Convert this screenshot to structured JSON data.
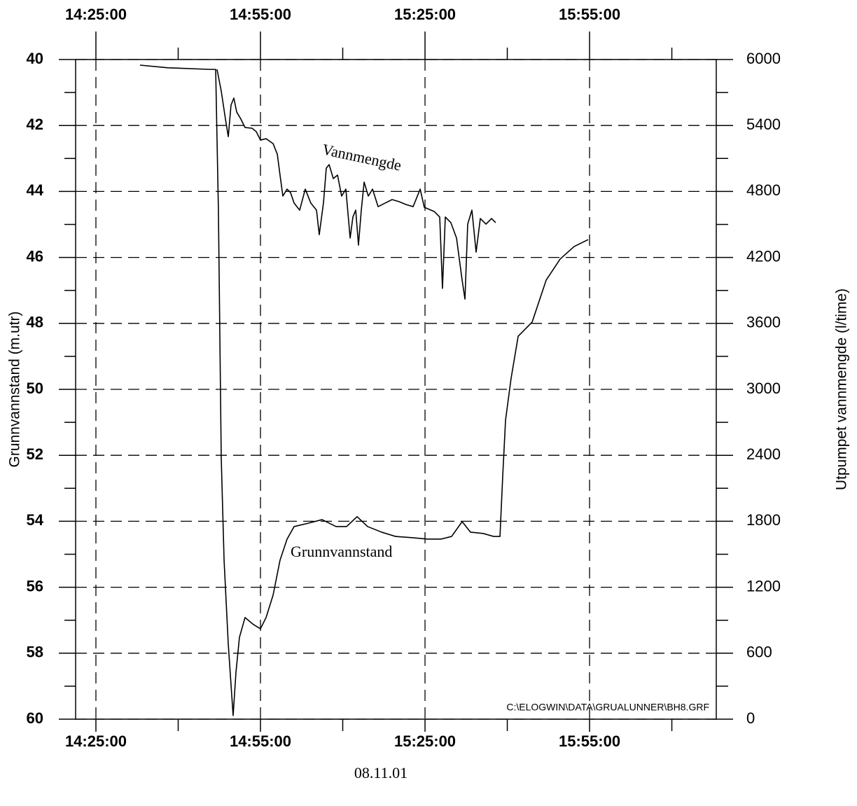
{
  "chart_data": {
    "type": "line",
    "xlim": [
      "14:21:18",
      "16:18:06"
    ],
    "xticks": [
      "14:25:00",
      "14:55:00",
      "15:25:00",
      "15:55:00"
    ],
    "xminorticks": [
      "14:40:00",
      "15:10:00",
      "15:40:00",
      "16:10:00"
    ],
    "ylim": [
      60,
      40
    ],
    "yticks": [
      40,
      42,
      44,
      46,
      48,
      50,
      52,
      54,
      56,
      58,
      60
    ],
    "yminorticks": [
      41,
      43,
      45,
      47,
      49,
      51,
      53,
      55,
      57,
      59
    ],
    "y2lim": [
      0,
      6000
    ],
    "y2ticks": [
      0,
      600,
      1200,
      1800,
      2400,
      3000,
      3600,
      4200,
      4800,
      5400,
      6000
    ],
    "y2minorticks": [
      300,
      900,
      1500,
      2100,
      2700,
      3300,
      3900,
      4500,
      5100,
      5700
    ],
    "ylabel": "Grunnvannstand (m.utr)",
    "y2label": "Utpumpet vannmengde (l/time)",
    "xlabel": "08.11.01",
    "grid": true,
    "annotations": [
      "Vannmengde",
      "Grunnvannstand",
      "C:\\ELOGWIN\\DATA\\GRUALUNNER\\BH8.GRF"
    ],
    "series": [
      {
        "name": "Grunnvannstand",
        "color": "#000000",
        "axis": "y",
        "x": [
          "14:33:02",
          "14:38:09",
          "14:45:49",
          "14:46:50",
          "14:47:20",
          "14:47:51",
          "14:48:22",
          "14:49:08",
          "14:50:01",
          "14:50:32",
          "14:51:10",
          "14:52:11",
          "14:53:43",
          "14:55:00",
          "14:56:01",
          "14:57:18",
          "14:58:34",
          "14:59:51",
          "15:01:08",
          "15:03:41",
          "15:06:14",
          "15:08:47",
          "15:10:42",
          "15:12:37",
          "15:14:32",
          "15:17:05",
          "15:19:38",
          "15:22:50",
          "15:25:23",
          "15:27:56",
          "15:29:51",
          "15:31:46",
          "15:33:18",
          "15:35:36",
          "15:37:31",
          "15:38:40",
          "15:39:10",
          "15:39:41",
          "15:40:42",
          "15:41:59",
          "15:44:32",
          "15:47:05",
          "15:49:38",
          "15:52:11",
          "15:54:44"
        ],
        "values": [
          40.17,
          40.25,
          40.3,
          40.3,
          44.56,
          52.08,
          55.18,
          57.73,
          59.89,
          58.58,
          57.52,
          56.92,
          57.13,
          57.26,
          56.92,
          56.24,
          55.18,
          54.54,
          54.16,
          54.06,
          53.95,
          54.16,
          54.16,
          53.86,
          54.16,
          54.33,
          54.46,
          54.5,
          54.54,
          54.54,
          54.46,
          54.01,
          54.33,
          54.37,
          54.46,
          54.46,
          52.63,
          50.93,
          49.66,
          48.39,
          47.96,
          46.69,
          46.05,
          45.67,
          45.46
        ]
      },
      {
        "name": "Vannmengde",
        "color": "#000000",
        "axis": "y2",
        "x": [
          "14:47:05",
          "14:47:51",
          "14:48:37",
          "14:49:08",
          "14:49:38",
          "14:50:09",
          "14:50:40",
          "14:51:26",
          "14:52:11",
          "14:53:28",
          "14:54:14",
          "14:55:00",
          "14:56:01",
          "14:57:18",
          "14:58:04",
          "14:58:34",
          "14:59:05",
          "14:59:51",
          "15:00:29",
          "15:01:08",
          "15:02:09",
          "15:03:10",
          "15:04:11",
          "15:05:13",
          "15:05:43",
          "15:06:29",
          "15:07:00",
          "15:07:31",
          "15:08:17",
          "15:09:03",
          "15:09:48",
          "15:10:34",
          "15:11:21",
          "15:11:51",
          "15:12:22",
          "15:12:52",
          "15:13:23",
          "15:13:54",
          "15:14:40",
          "15:15:26",
          "15:16:27",
          "15:17:43",
          "15:19:00",
          "15:20:17",
          "15:21:33",
          "15:22:50",
          "15:24:07",
          "15:24:52",
          "15:26:40",
          "15:27:41",
          "15:28:11",
          "15:28:42",
          "15:29:43",
          "15:30:45",
          "15:31:46",
          "15:32:17",
          "15:32:47",
          "15:33:33",
          "15:34:19",
          "15:35:05",
          "15:36:07",
          "15:37:08",
          "15:37:53"
        ],
        "values": [
          5910,
          5713,
          5458,
          5299,
          5586,
          5649,
          5522,
          5458,
          5382,
          5375,
          5344,
          5267,
          5280,
          5235,
          5140,
          4949,
          4758,
          4821,
          4789,
          4694,
          4630,
          4821,
          4694,
          4630,
          4407,
          4694,
          5012,
          5044,
          4917,
          4949,
          4758,
          4821,
          4376,
          4567,
          4630,
          4312,
          4630,
          4885,
          4758,
          4821,
          4662,
          4694,
          4726,
          4707,
          4681,
          4662,
          4821,
          4656,
          4618,
          4567,
          3918,
          4567,
          4516,
          4376,
          3993,
          3821,
          4503,
          4630,
          4248,
          4554,
          4503,
          4554,
          4516
        ]
      }
    ]
  }
}
